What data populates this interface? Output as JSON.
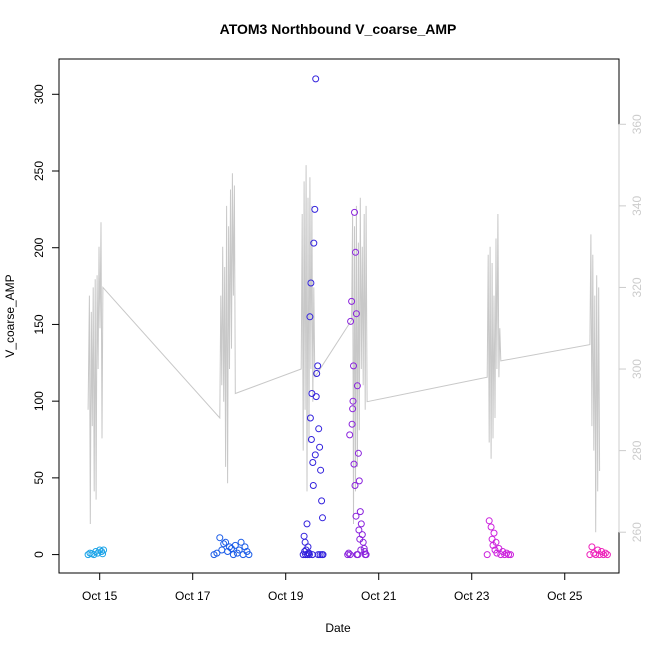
{
  "chart_data": {
    "type": "scatter",
    "title": "ATOM3 Northbound V_coarse_AMP",
    "xlabel": "Date",
    "ylabel": "V_coarse_AMP",
    "x_axis": {
      "type": "date",
      "range": [
        "2018-10-14T03:00",
        "2018-10-26T04:00"
      ],
      "ticks": [
        {
          "date": "2018-10-15",
          "label": "Oct 15"
        },
        {
          "date": "2018-10-17",
          "label": "Oct 17"
        },
        {
          "date": "2018-10-19",
          "label": "Oct 19"
        },
        {
          "date": "2018-10-21",
          "label": "Oct 21"
        },
        {
          "date": "2018-10-23",
          "label": "Oct 23"
        },
        {
          "date": "2018-10-25",
          "label": "Oct 25"
        }
      ]
    },
    "y_axis_left": {
      "range": [
        -12,
        323
      ],
      "ticks": [
        0,
        50,
        100,
        150,
        200,
        250,
        300
      ]
    },
    "y_axis_right": {
      "range": [
        250,
        376
      ],
      "ticks": [
        260,
        280,
        300,
        320,
        340,
        360
      ],
      "color": "#cccccc"
    },
    "grid": false,
    "legend": "none",
    "colors": {
      "line": "#c8c8c8",
      "axis": "#000000",
      "right_axis": "#cccccc"
    },
    "scatter_series": [
      {
        "color": "#1aa3e8",
        "points": [
          [
            "2018-10-14T18:00",
            0
          ],
          [
            "2018-10-14T19:00",
            1
          ],
          [
            "2018-10-14T20:00",
            0.5
          ],
          [
            "2018-10-14T21:00",
            0
          ],
          [
            "2018-10-14T22:00",
            2
          ],
          [
            "2018-10-14T23:00",
            1
          ],
          [
            "2018-10-15T00:00",
            3
          ],
          [
            "2018-10-15T01:00",
            2
          ],
          [
            "2018-10-15T01:30",
            0.5
          ],
          [
            "2018-10-15T02:00",
            3
          ]
        ]
      },
      {
        "color": "#1a5ce8",
        "points": [
          [
            "2018-10-17T11:00",
            0
          ],
          [
            "2018-10-17T12:30",
            1
          ],
          [
            "2018-10-17T14:00",
            11
          ],
          [
            "2018-10-17T15:00",
            3
          ],
          [
            "2018-10-17T16:00",
            7
          ],
          [
            "2018-10-17T17:00",
            8
          ],
          [
            "2018-10-17T18:00",
            2
          ],
          [
            "2018-10-17T19:00",
            5
          ],
          [
            "2018-10-17T20:00",
            4
          ],
          [
            "2018-10-17T21:00",
            0
          ],
          [
            "2018-10-17T22:00",
            6
          ],
          [
            "2018-10-17T23:00",
            1
          ],
          [
            "2018-10-18T00:00",
            3
          ],
          [
            "2018-10-18T01:00",
            8
          ],
          [
            "2018-10-18T02:00",
            0
          ],
          [
            "2018-10-18T03:00",
            5
          ],
          [
            "2018-10-18T04:00",
            2
          ],
          [
            "2018-10-18T05:00",
            0
          ]
        ]
      },
      {
        "color": "#3322dd",
        "points": [
          [
            "2018-10-19T09:00",
            0
          ],
          [
            "2018-10-19T09:30",
            12
          ],
          [
            "2018-10-19T10:00",
            8
          ],
          [
            "2018-10-19T10:30",
            3
          ],
          [
            "2018-10-19T11:00",
            20
          ],
          [
            "2018-10-19T11:30",
            5
          ],
          [
            "2018-10-19T12:00",
            1
          ],
          [
            "2018-10-19T12:30",
            155
          ],
          [
            "2018-10-19T13:00",
            177
          ],
          [
            "2018-10-19T13:30",
            105
          ],
          [
            "2018-10-19T14:00",
            60
          ],
          [
            "2018-10-19T14:30",
            203
          ],
          [
            "2018-10-19T15:00",
            225
          ],
          [
            "2018-10-19T15:30",
            310
          ],
          [
            "2018-10-19T16:00",
            118
          ],
          [
            "2018-10-19T16:30",
            123
          ],
          [
            "2018-10-19T17:00",
            82
          ],
          [
            "2018-10-19T17:30",
            70
          ],
          [
            "2018-10-19T18:00",
            55
          ],
          [
            "2018-10-19T18:30",
            35
          ],
          [
            "2018-10-19T19:00",
            24
          ],
          [
            "2018-10-19T12:45",
            89
          ],
          [
            "2018-10-19T13:15",
            75
          ],
          [
            "2018-10-19T14:15",
            45
          ],
          [
            "2018-10-19T15:15",
            65
          ],
          [
            "2018-10-19T15:45",
            103
          ],
          [
            "2018-10-19T10:15",
            0
          ],
          [
            "2018-10-19T11:15",
            0
          ],
          [
            "2018-10-19T12:15",
            0
          ],
          [
            "2018-10-19T13:45",
            0
          ],
          [
            "2018-10-19T16:45",
            0
          ],
          [
            "2018-10-19T17:45",
            0
          ],
          [
            "2018-10-19T18:45",
            0
          ],
          [
            "2018-10-19T19:15",
            0
          ],
          [
            "2018-10-19T09:45",
            2
          ],
          [
            "2018-10-19T11:45",
            1
          ]
        ]
      },
      {
        "color": "#8a22dd",
        "points": [
          [
            "2018-10-20T08:00",
            0
          ],
          [
            "2018-10-20T09:00",
            78
          ],
          [
            "2018-10-20T09:30",
            152
          ],
          [
            "2018-10-20T10:00",
            165
          ],
          [
            "2018-10-20T10:30",
            95
          ],
          [
            "2018-10-20T11:00",
            123
          ],
          [
            "2018-10-20T11:30",
            223
          ],
          [
            "2018-10-20T12:00",
            197
          ],
          [
            "2018-10-20T12:30",
            157
          ],
          [
            "2018-10-20T13:00",
            110
          ],
          [
            "2018-10-20T13:30",
            66
          ],
          [
            "2018-10-20T14:00",
            48
          ],
          [
            "2018-10-20T14:30",
            28
          ],
          [
            "2018-10-20T15:00",
            20
          ],
          [
            "2018-10-20T15:30",
            13
          ],
          [
            "2018-10-20T16:00",
            8
          ],
          [
            "2018-10-20T16:30",
            4
          ],
          [
            "2018-10-20T17:00",
            0
          ],
          [
            "2018-10-20T10:15",
            85
          ],
          [
            "2018-10-20T10:45",
            100
          ],
          [
            "2018-10-20T11:15",
            59
          ],
          [
            "2018-10-20T11:45",
            45
          ],
          [
            "2018-10-20T12:15",
            25
          ],
          [
            "2018-10-20T12:45",
            0
          ],
          [
            "2018-10-20T13:15",
            0
          ],
          [
            "2018-10-20T13:45",
            16
          ],
          [
            "2018-10-20T14:15",
            10
          ],
          [
            "2018-10-20T14:45",
            3
          ],
          [
            "2018-10-20T09:15",
            0
          ],
          [
            "2018-10-20T08:30",
            1
          ],
          [
            "2018-10-20T16:45",
            2
          ],
          [
            "2018-10-20T17:30",
            0
          ]
        ]
      },
      {
        "color": "#cc22dd",
        "points": [
          [
            "2018-10-23T08:00",
            0
          ],
          [
            "2018-10-23T09:00",
            22
          ],
          [
            "2018-10-23T10:00",
            18
          ],
          [
            "2018-10-23T10:30",
            10
          ],
          [
            "2018-10-23T11:00",
            6
          ],
          [
            "2018-10-23T11:30",
            14
          ],
          [
            "2018-10-23T12:00",
            3
          ],
          [
            "2018-10-23T12:30",
            8
          ],
          [
            "2018-10-23T13:00",
            1
          ],
          [
            "2018-10-23T14:00",
            4
          ],
          [
            "2018-10-23T15:00",
            0
          ],
          [
            "2018-10-23T16:00",
            2
          ],
          [
            "2018-10-23T17:00",
            0
          ],
          [
            "2018-10-23T18:00",
            1
          ],
          [
            "2018-10-23T19:00",
            0
          ],
          [
            "2018-10-23T20:00",
            0
          ]
        ]
      },
      {
        "color": "#ee22bb",
        "points": [
          [
            "2018-10-25T13:00",
            0
          ],
          [
            "2018-10-25T14:00",
            5
          ],
          [
            "2018-10-25T15:00",
            1
          ],
          [
            "2018-10-25T16:00",
            0
          ],
          [
            "2018-10-25T17:00",
            3
          ],
          [
            "2018-10-25T18:00",
            0
          ],
          [
            "2018-10-25T19:00",
            2
          ],
          [
            "2018-10-25T20:00",
            0
          ],
          [
            "2018-10-25T21:00",
            1
          ],
          [
            "2018-10-25T22:00",
            0
          ]
        ]
      }
    ],
    "line_series": {
      "axis": "right",
      "color": "#c8c8c8",
      "segments": [
        [
          [
            "2018-10-14T18:00",
            290
          ],
          [
            "2018-10-14T18:40",
            318
          ],
          [
            "2018-10-14T19:10",
            262
          ],
          [
            "2018-10-14T19:40",
            314
          ],
          [
            "2018-10-14T20:10",
            286
          ],
          [
            "2018-10-14T20:40",
            320
          ],
          [
            "2018-10-14T21:10",
            270
          ],
          [
            "2018-10-14T21:40",
            322
          ],
          [
            "2018-10-14T22:10",
            268
          ],
          [
            "2018-10-14T22:40",
            323
          ],
          [
            "2018-10-14T23:10",
            300
          ],
          [
            "2018-10-14T23:40",
            330
          ],
          [
            "2018-10-15T00:10",
            310
          ],
          [
            "2018-10-15T00:40",
            336
          ],
          [
            "2018-10-15T01:10",
            283
          ],
          [
            "2018-10-15T01:40",
            320
          ],
          [
            "2018-10-17T14:00",
            288
          ],
          [
            "2018-10-17T14:30",
            318
          ],
          [
            "2018-10-17T15:00",
            296
          ],
          [
            "2018-10-17T15:30",
            330
          ],
          [
            "2018-10-17T16:00",
            292
          ],
          [
            "2018-10-17T16:30",
            325
          ],
          [
            "2018-10-17T17:00",
            276
          ],
          [
            "2018-10-17T17:30",
            340
          ],
          [
            "2018-10-17T18:00",
            272
          ],
          [
            "2018-10-17T18:30",
            335
          ],
          [
            "2018-10-17T19:00",
            300
          ],
          [
            "2018-10-17T19:30",
            344
          ],
          [
            "2018-10-17T20:00",
            305
          ],
          [
            "2018-10-17T20:30",
            348
          ],
          [
            "2018-10-17T21:00",
            318
          ],
          [
            "2018-10-17T21:30",
            345
          ],
          [
            "2018-10-17T22:00",
            294
          ],
          [
            "2018-10-19T08:00",
            300
          ],
          [
            "2018-10-19T08:30",
            338
          ],
          [
            "2018-10-19T09:00",
            280
          ],
          [
            "2018-10-19T09:30",
            346
          ],
          [
            "2018-10-19T10:00",
            290
          ],
          [
            "2018-10-19T10:30",
            350
          ],
          [
            "2018-10-19T11:00",
            270
          ],
          [
            "2018-10-19T11:30",
            342
          ],
          [
            "2018-10-19T12:00",
            282
          ],
          [
            "2018-10-19T12:30",
            347
          ],
          [
            "2018-10-19T13:00",
            300
          ],
          [
            "2018-10-19T13:30",
            340
          ],
          [
            "2018-10-19T14:00",
            292
          ],
          [
            "2018-10-19T14:30",
            320
          ],
          [
            "2018-10-19T15:00",
            298
          ]
        ],
        [
          [
            "2018-10-19T15:00",
            298
          ],
          [
            "2018-10-20T10:00",
            312
          ],
          [
            "2018-10-20T10:30",
            338
          ],
          [
            "2018-10-20T11:00",
            262
          ],
          [
            "2018-10-20T11:30",
            335
          ],
          [
            "2018-10-20T12:00",
            270
          ],
          [
            "2018-10-20T12:30",
            340
          ],
          [
            "2018-10-20T13:00",
            276
          ],
          [
            "2018-10-20T13:30",
            331
          ],
          [
            "2018-10-20T14:00",
            285
          ],
          [
            "2018-10-20T14:30",
            342
          ],
          [
            "2018-10-20T15:00",
            300
          ],
          [
            "2018-10-20T15:30",
            330
          ],
          [
            "2018-10-20T16:00",
            296
          ],
          [
            "2018-10-20T16:30",
            338
          ],
          [
            "2018-10-20T17:00",
            290
          ],
          [
            "2018-10-20T17:30",
            340
          ],
          [
            "2018-10-20T18:00",
            292
          ],
          [
            "2018-10-23T08:00",
            298
          ],
          [
            "2018-10-23T08:30",
            328
          ],
          [
            "2018-10-23T09:00",
            282
          ],
          [
            "2018-10-23T09:30",
            330
          ],
          [
            "2018-10-23T10:00",
            278
          ],
          [
            "2018-10-23T10:30",
            326
          ],
          [
            "2018-10-23T11:00",
            283
          ],
          [
            "2018-10-23T11:30",
            318
          ],
          [
            "2018-10-23T12:00",
            288
          ],
          [
            "2018-10-23T12:30",
            332
          ],
          [
            "2018-10-23T13:00",
            300
          ],
          [
            "2018-10-23T13:30",
            338
          ],
          [
            "2018-10-23T14:00",
            298
          ],
          [
            "2018-10-23T14:30",
            310
          ],
          [
            "2018-10-23T15:00",
            302
          ],
          [
            "2018-10-25T13:00",
            306
          ],
          [
            "2018-10-25T13:30",
            333
          ],
          [
            "2018-10-25T14:00",
            286
          ],
          [
            "2018-10-25T14:30",
            328
          ],
          [
            "2018-10-25T15:00",
            280
          ],
          [
            "2018-10-25T15:30",
            318
          ],
          [
            "2018-10-25T16:00",
            260
          ],
          [
            "2018-10-25T16:30",
            323
          ],
          [
            "2018-10-25T17:00",
            270
          ],
          [
            "2018-10-25T17:30",
            320
          ],
          [
            "2018-10-25T18:00",
            275
          ]
        ]
      ]
    }
  }
}
